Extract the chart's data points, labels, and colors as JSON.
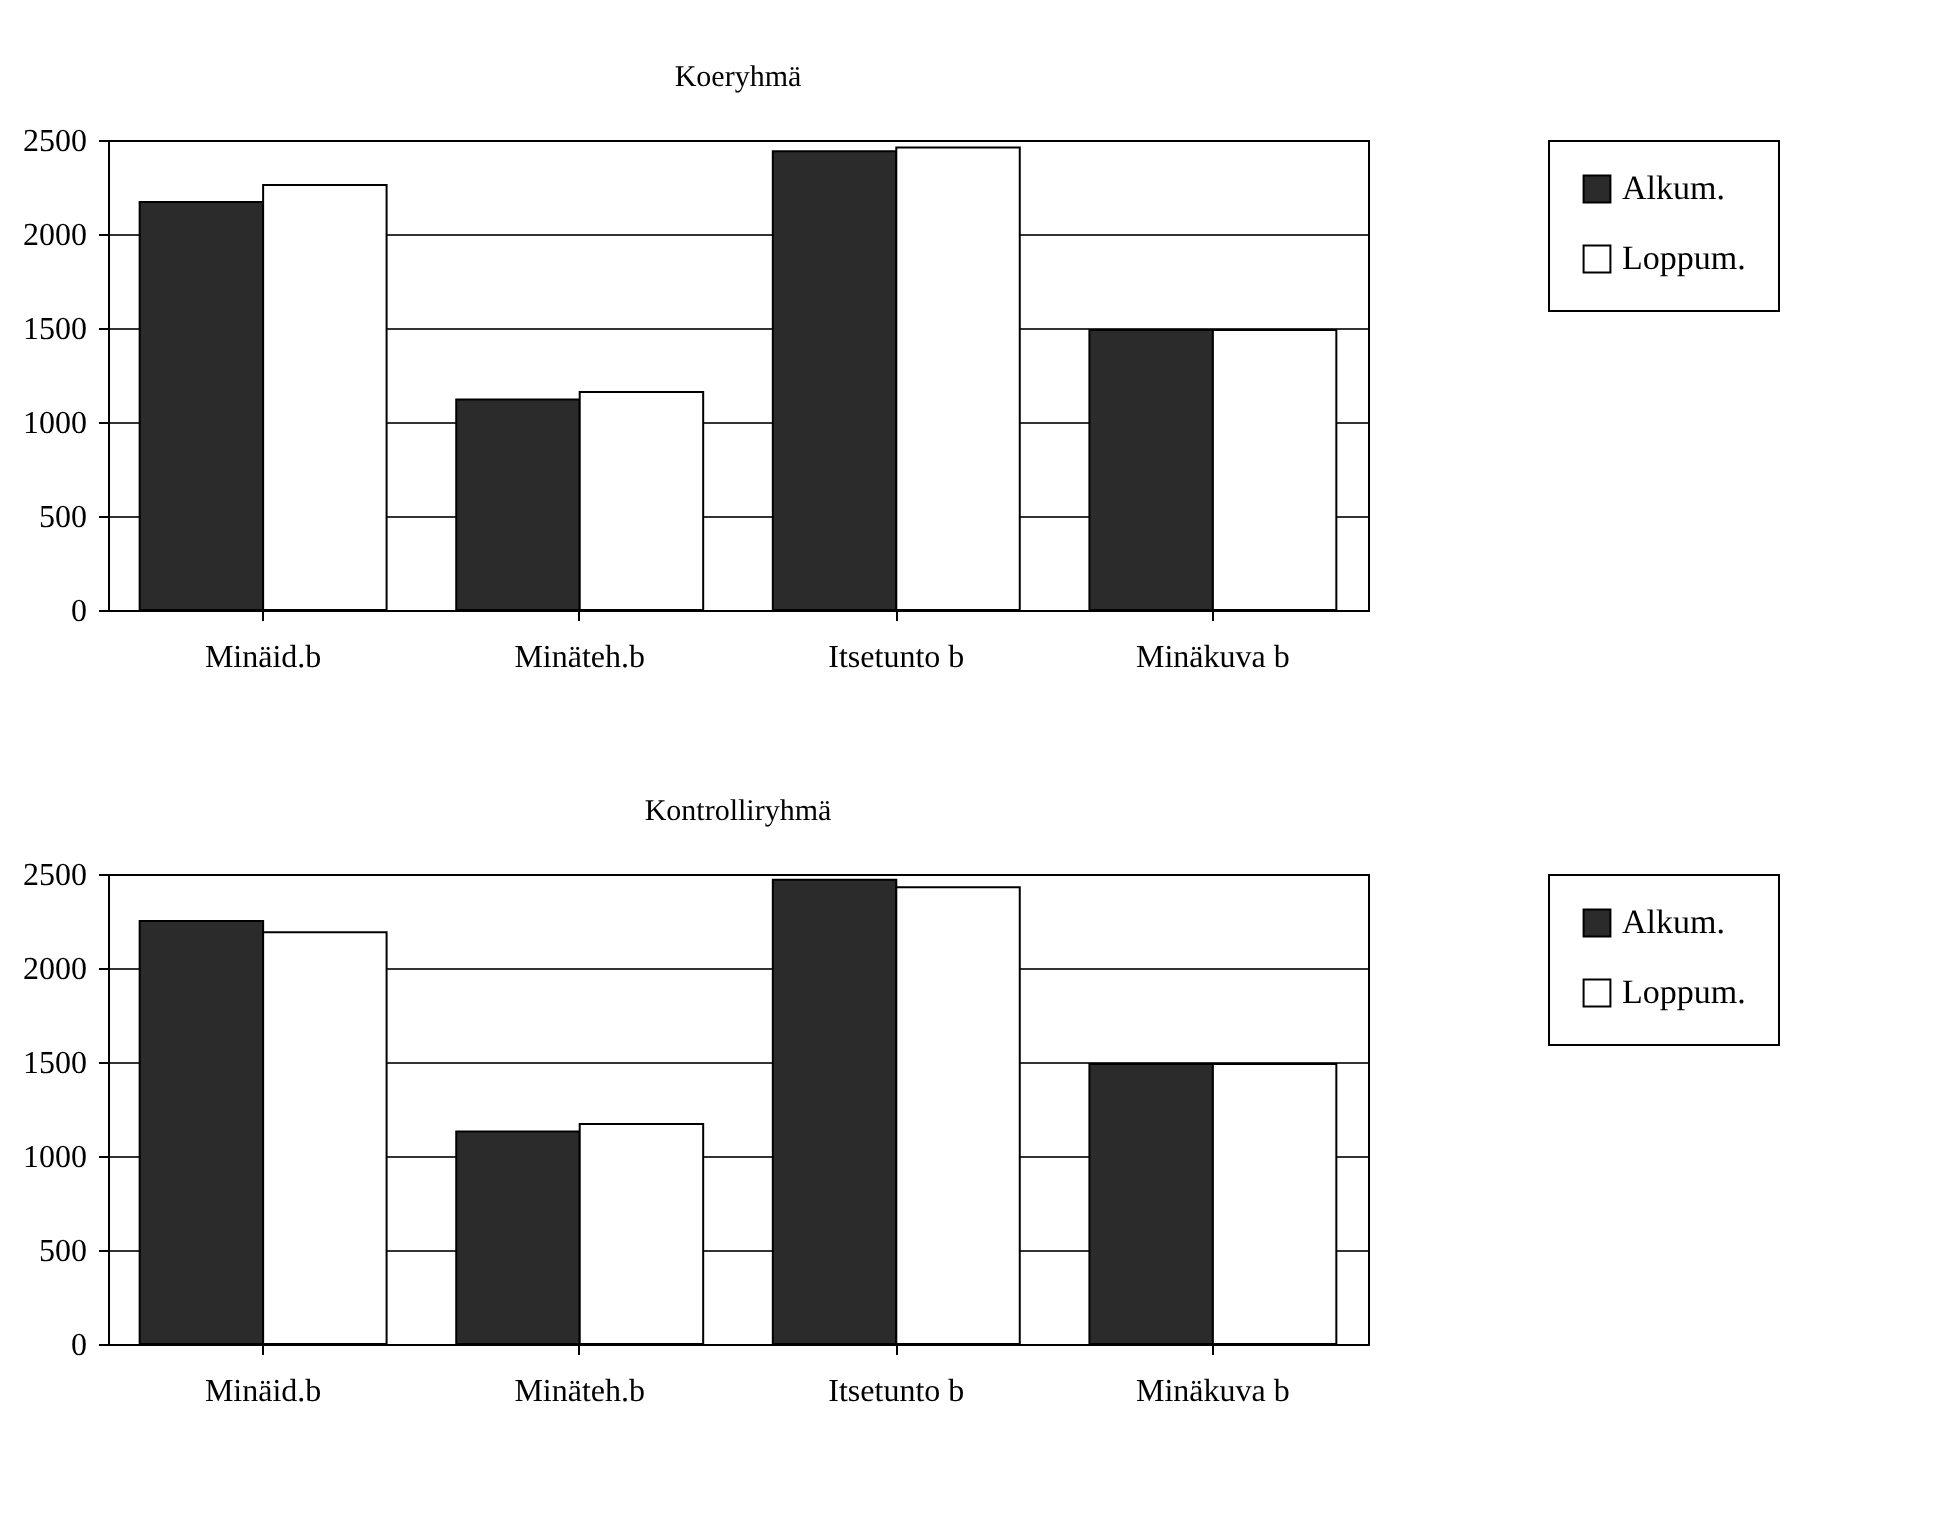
{
  "chart_data": [
    {
      "type": "bar",
      "title": "Koeryhmä",
      "categories": [
        "Minäid.b",
        "Minäteh.b",
        "Itsetunto b",
        "Minäkuva b"
      ],
      "series": [
        {
          "name": "Alkum.",
          "color": "#2b2b2b",
          "values": [
            2170,
            1120,
            2440,
            1490
          ]
        },
        {
          "name": "Loppum.",
          "color": "#ffffff",
          "values": [
            2260,
            1160,
            2460,
            1490
          ]
        }
      ],
      "ylim": [
        0,
        2500
      ],
      "yticks": [
        0,
        500,
        1000,
        1500,
        2000,
        2500
      ],
      "grid": "y",
      "legend": "right"
    },
    {
      "type": "bar",
      "title": "Kontrolliryhmä",
      "categories": [
        "Minäid.b",
        "Minäteh.b",
        "Itsetunto b",
        "Minäkuva b"
      ],
      "series": [
        {
          "name": "Alkum.",
          "color": "#2b2b2b",
          "values": [
            2250,
            1130,
            2470,
            1490
          ]
        },
        {
          "name": "Loppum.",
          "color": "#ffffff",
          "values": [
            2190,
            1170,
            2430,
            1490
          ]
        }
      ],
      "ylim": [
        0,
        2500
      ],
      "yticks": [
        0,
        500,
        1000,
        1500,
        2000,
        2500
      ],
      "grid": "y",
      "legend": "right"
    }
  ]
}
